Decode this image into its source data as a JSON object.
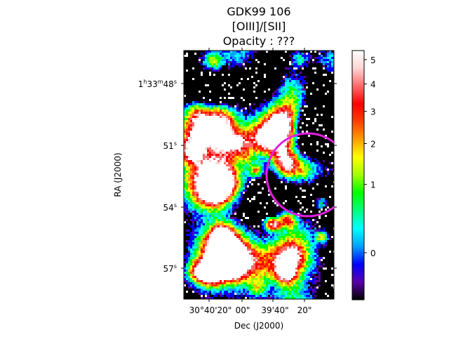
{
  "chart_data": {
    "type": "heatmap",
    "title": [
      "GDK99 106",
      "[OIII]/[SII]",
      "Opacity : ???"
    ],
    "xlabel": "Dec (J2000)",
    "ylabel": "RA (J2000)",
    "x_ticks": [
      "30°40'20\"",
      "00\"",
      "39'40\"",
      "20\""
    ],
    "y_ticks": [
      "1h33m48s",
      "51s",
      "54s",
      "57s"
    ],
    "colorbar": {
      "ticks": [
        "0",
        "1",
        "2",
        "3",
        "4",
        "5"
      ],
      "tick_values": [
        0,
        1,
        2,
        3,
        4,
        5
      ],
      "range": [
        -0.2,
        5.4
      ],
      "colormap": [
        "#000000",
        "#5a00a8",
        "#0000ff",
        "#00a0ff",
        "#00ffff",
        "#00ff80",
        "#00ff00",
        "#a0ff00",
        "#ffff00",
        "#ffa000",
        "#ff4000",
        "#ff0000",
        "#ff6a6a",
        "#ffd4d4",
        "#ffffff"
      ]
    },
    "region": {
      "shape": "circle",
      "color": "#e020e0"
    }
  }
}
